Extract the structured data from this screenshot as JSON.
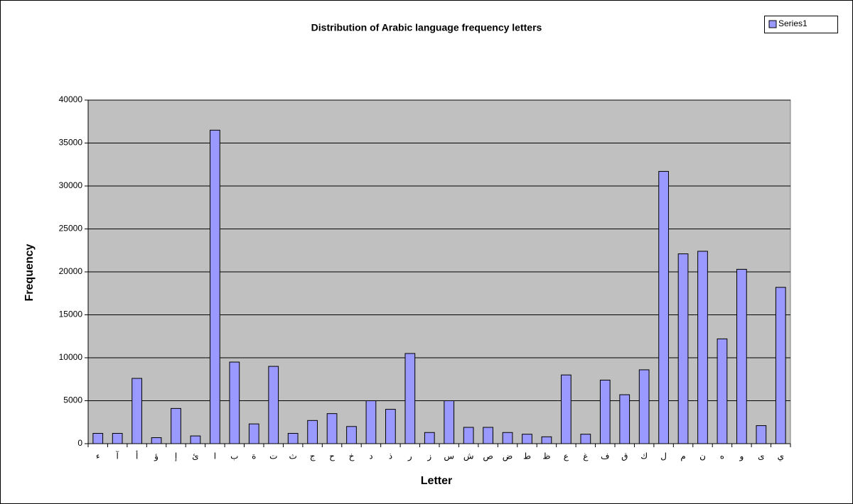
{
  "chart_data": {
    "type": "bar",
    "title": "Distribution of Arabic language frequency letters",
    "x_label": "Letter",
    "y_label": "Frequency",
    "categories": [
      "ء",
      "آ",
      "أ",
      "ؤ",
      "إ",
      "ئ",
      "ا",
      "ب",
      "ة",
      "ت",
      "ث",
      "ج",
      "ح",
      "خ",
      "د",
      "ذ",
      "ر",
      "ز",
      "س",
      "ش",
      "ص",
      "ض",
      "ط",
      "ظ",
      "ع",
      "غ",
      "ف",
      "ق",
      "ك",
      "ل",
      "م",
      "ن",
      "ه",
      "و",
      "ى",
      "ي"
    ],
    "series": [
      {
        "name": "Series1",
        "color": "#9999ff",
        "values": [
          1200,
          1200,
          7600,
          700,
          4100,
          900,
          36500,
          9500,
          2300,
          9000,
          1200,
          2700,
          3500,
          2000,
          5000,
          4000,
          10500,
          1300,
          5000,
          1900,
          1900,
          1300,
          1100,
          800,
          8000,
          1100,
          7400,
          5700,
          8600,
          31700,
          22100,
          22400,
          12200,
          20300,
          2100,
          18200
        ]
      }
    ],
    "ylim": [
      0,
      40000
    ],
    "yticks": [
      0,
      5000,
      10000,
      15000,
      20000,
      25000,
      30000,
      35000,
      40000
    ],
    "grid": true,
    "legend": "top-right",
    "plot_background": "#c0c0c0"
  }
}
